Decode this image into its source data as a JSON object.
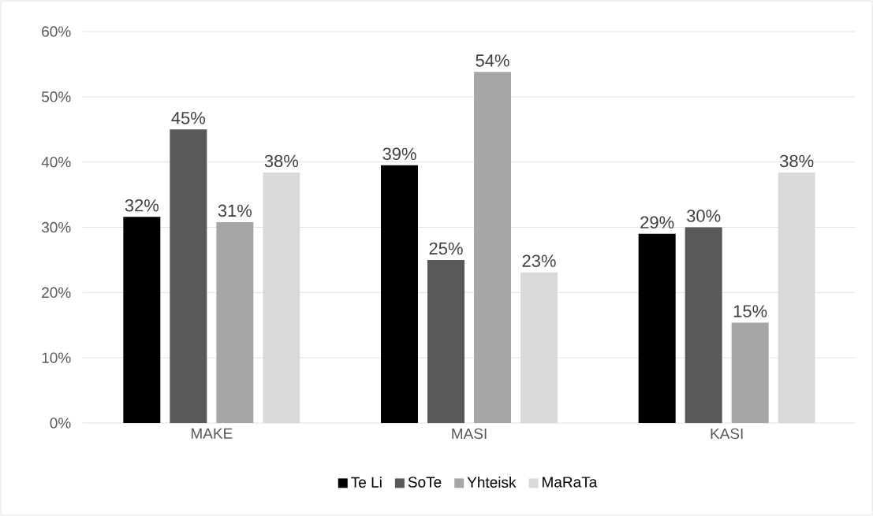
{
  "chart_data": {
    "type": "bar",
    "categories": [
      "MAKE",
      "MASI",
      "KASI"
    ],
    "series": [
      {
        "name": "Te Li",
        "color": "#000000",
        "values": [
          31.6,
          39.5,
          29
        ],
        "value_labels": [
          "32%",
          "39%",
          "29%"
        ]
      },
      {
        "name": "SoTe",
        "color": "#595959",
        "values": [
          45,
          25,
          30
        ],
        "value_labels": [
          "45%",
          "25%",
          "30%"
        ]
      },
      {
        "name": "Yhteisk",
        "color": "#a6a6a6",
        "values": [
          30.8,
          53.8,
          15.4
        ],
        "value_labels": [
          "31%",
          "54%",
          "15%"
        ]
      },
      {
        "name": "MaRaTa",
        "color": "#d9d9d9",
        "values": [
          38.4,
          23.1,
          38.4
        ],
        "value_labels": [
          "38%",
          "23%",
          "38%"
        ]
      }
    ],
    "ylim": [
      0,
      60
    ],
    "yticks": [
      {
        "value": 0,
        "label": "0%"
      },
      {
        "value": 10,
        "label": "10%"
      },
      {
        "value": 20,
        "label": "20%"
      },
      {
        "value": 30,
        "label": "30%"
      },
      {
        "value": 40,
        "label": "40%"
      },
      {
        "value": 50,
        "label": "50%"
      },
      {
        "value": 60,
        "label": "60%"
      }
    ],
    "grid": "y",
    "legend": "bottom"
  }
}
